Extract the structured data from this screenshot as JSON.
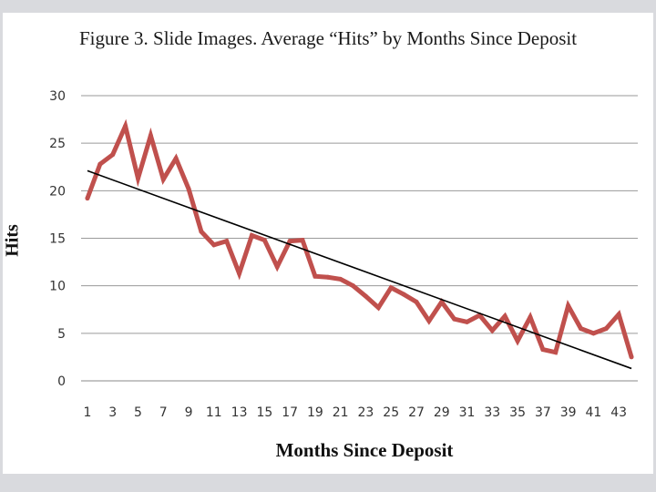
{
  "chart_data": {
    "type": "line",
    "title": "Figure 3. Slide Images. Average “Hits” by Months Since Deposit",
    "xlabel": "Months Since Deposit",
    "ylabel": "Hits",
    "ylim": [
      0,
      30
    ],
    "yticks": [
      0,
      5,
      10,
      15,
      20,
      25,
      30
    ],
    "xlim": [
      1,
      44
    ],
    "xticks": [
      1,
      3,
      5,
      7,
      9,
      11,
      13,
      15,
      17,
      19,
      21,
      23,
      25,
      27,
      29,
      31,
      33,
      35,
      37,
      39,
      41,
      43
    ],
    "grid": true,
    "legend": "none",
    "series": [
      {
        "color": "#c0504d",
        "x": [
          1,
          2,
          3,
          4,
          5,
          6,
          7,
          8,
          9,
          10,
          11,
          12,
          13,
          14,
          15,
          16,
          17,
          18,
          19,
          20,
          21,
          22,
          23,
          24,
          25,
          26,
          27,
          28,
          29,
          30,
          31,
          32,
          33,
          34,
          35,
          36,
          37,
          38,
          39,
          40,
          41,
          42,
          43,
          44
        ],
        "values": [
          19.2,
          22.8,
          23.8,
          26.8,
          21.3,
          25.8,
          21.2,
          23.4,
          20.2,
          15.7,
          14.3,
          14.7,
          11.3,
          15.3,
          14.8,
          12.0,
          14.7,
          14.8,
          11.0,
          10.9,
          10.7,
          10.0,
          8.9,
          7.7,
          9.8,
          9.1,
          8.3,
          6.3,
          8.3,
          6.5,
          6.2,
          6.9,
          5.3,
          6.8,
          4.2,
          6.7,
          3.3,
          3.0,
          7.9,
          5.5,
          5.0,
          5.5,
          7.0,
          2.5
        ]
      }
    ],
    "trendline": {
      "color": "#000000",
      "x": [
        1,
        44
      ],
      "values": [
        22.1,
        1.3
      ]
    }
  }
}
